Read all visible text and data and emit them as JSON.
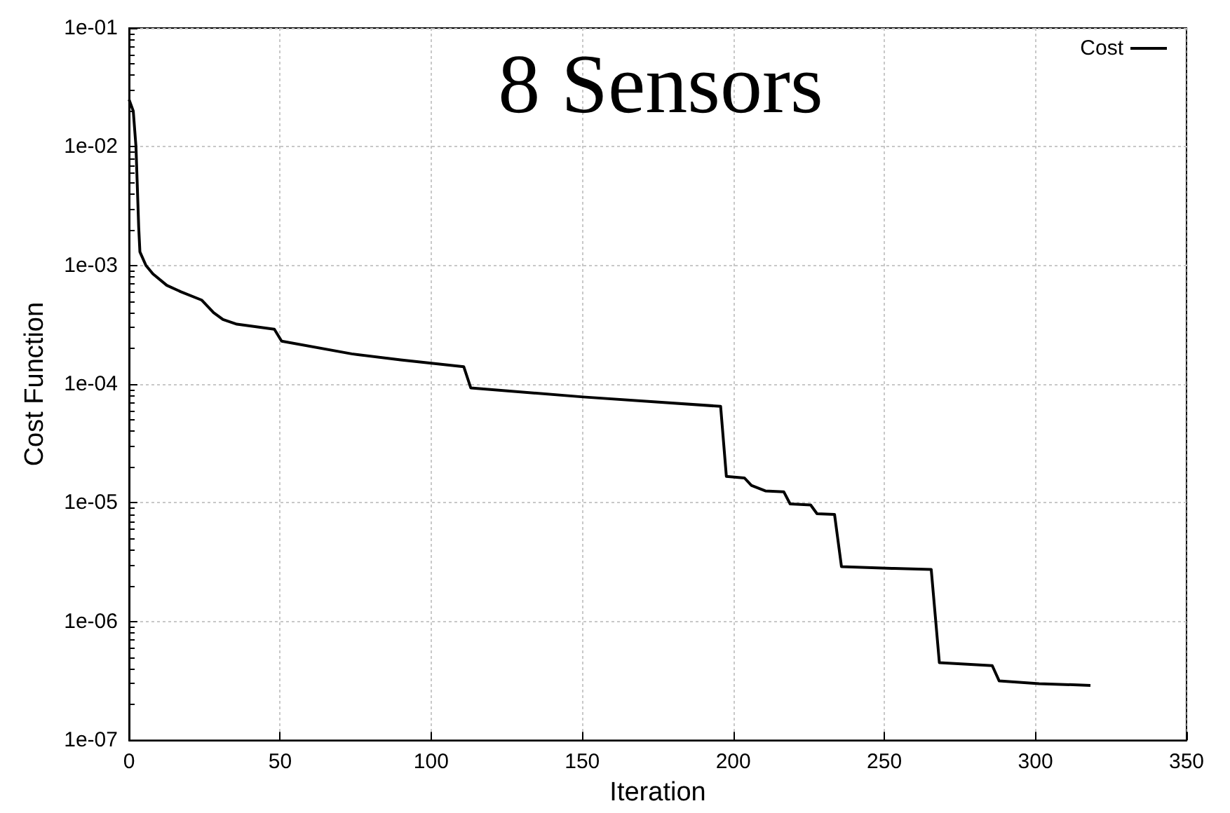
{
  "chart_data": {
    "type": "line",
    "title": "8 Sensors",
    "xlabel": "Iteration",
    "ylabel": "Cost Function",
    "log": "y",
    "grid": true,
    "legend": "top right",
    "marker": "none",
    "line_style": "solid",
    "xlim": [
      0,
      350
    ],
    "xticks": [
      0,
      50,
      100,
      150,
      200,
      250,
      300,
      350
    ],
    "ylim": [
      1e-07,
      0.1
    ],
    "yticks": [
      {
        "value": 1e-07,
        "label": "1e-07"
      },
      {
        "value": 1e-06,
        "label": "1e-06"
      },
      {
        "value": 1e-05,
        "label": "1e-05"
      },
      {
        "value": 0.0001,
        "label": "1e-04"
      },
      {
        "value": 0.001,
        "label": "1e-03"
      },
      {
        "value": 0.01,
        "label": "1e-02"
      },
      {
        "value": 0.1,
        "label": "1e-01"
      }
    ],
    "series": [
      {
        "name": "Cost",
        "color": "#000000",
        "x": [
          0,
          1.4,
          2.3,
          3.2,
          3.6,
          5.6,
          7.9,
          12.5,
          17.2,
          24.1,
          28,
          31.1,
          35.7,
          48.1,
          50.5,
          73.7,
          89.9,
          110.8,
          113.1,
          150.3,
          195.8,
          197.7,
          203.7,
          206,
          210.6,
          216.7,
          218.8,
          225.6,
          227.7,
          233.5,
          235.8,
          253.2,
          265.5,
          268.2,
          285.7,
          288,
          301.2,
          318.2
        ],
        "values": [
          0.025,
          0.02,
          0.01,
          0.0021,
          0.0013,
          0.001,
          0.00085,
          0.00068,
          0.0006,
          0.00051,
          0.0004,
          0.00035,
          0.00032,
          0.00029,
          0.00023,
          0.00018,
          0.00016,
          0.00014,
          9.3e-05,
          7.8e-05,
          6.5e-05,
          1.67e-05,
          1.62e-05,
          1.4e-05,
          1.26e-05,
          1.24e-05,
          9.8e-06,
          9.6e-06,
          8.1e-06,
          8e-06,
          2.9e-06,
          2.8e-06,
          2.75e-06,
          4.5e-07,
          4.25e-07,
          3.16e-07,
          3e-07,
          2.9e-07
        ]
      }
    ]
  }
}
